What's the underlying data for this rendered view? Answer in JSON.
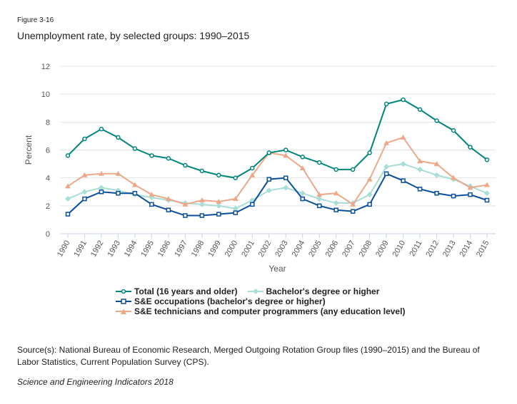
{
  "figure_label": "Figure 3-16",
  "source": "Source(s): National Bureau of Economic Research, Merged Outgoing Rotation Group files (1990–2015) and the Bureau of Labor Statistics, Current Population Survey (CPS).",
  "publication": "Science and Engineering Indicators 2018",
  "chart_data": {
    "type": "line",
    "title": "Unemployment rate, by selected groups: 1990–2015",
    "xlabel": "Year",
    "ylabel": "Percent",
    "ylim": [
      0,
      12
    ],
    "yticks": [
      "0",
      "2",
      "4",
      "6",
      "8",
      "10",
      "12"
    ],
    "grid": true,
    "legend_position": "bottom",
    "x": [
      "1990",
      "1991",
      "1992",
      "1993",
      "1994",
      "1995",
      "1996",
      "1997",
      "1998",
      "1999",
      "2000",
      "2001",
      "2002",
      "2003",
      "2004",
      "2005",
      "2006",
      "2007",
      "2008",
      "2009",
      "2010",
      "2011",
      "2012",
      "2013",
      "2014",
      "2015"
    ],
    "series": [
      {
        "name": "Total (16 years and older)",
        "color": "#00857a",
        "marker": "circle",
        "values": [
          5.6,
          6.8,
          7.5,
          6.9,
          6.1,
          5.6,
          5.4,
          4.9,
          4.5,
          4.2,
          4.0,
          4.7,
          5.8,
          6.0,
          5.5,
          5.1,
          4.6,
          4.6,
          5.8,
          9.3,
          9.6,
          8.9,
          8.1,
          7.4,
          6.2,
          5.3
        ]
      },
      {
        "name": "Bachelor's degree or higher",
        "color": "#a8ddd8",
        "marker": "diamond",
        "values": [
          2.5,
          3.0,
          3.3,
          3.1,
          2.8,
          2.6,
          2.4,
          2.2,
          2.1,
          2.0,
          1.8,
          2.4,
          3.1,
          3.3,
          2.9,
          2.5,
          2.2,
          2.2,
          2.8,
          4.8,
          5.0,
          4.6,
          4.2,
          3.9,
          3.4,
          2.9
        ]
      },
      {
        "name": "S&E occupations (bachelor's degree or higher)",
        "color": "#0a4f9e",
        "marker": "square",
        "values": [
          1.4,
          2.5,
          3.0,
          2.9,
          2.9,
          2.1,
          1.7,
          1.3,
          1.3,
          1.4,
          1.5,
          2.1,
          3.9,
          4.0,
          2.5,
          2.0,
          1.7,
          1.6,
          2.1,
          4.3,
          3.8,
          3.2,
          2.9,
          2.7,
          2.8,
          2.4
        ]
      },
      {
        "name": "S&E technicians and computer programmers (any education level)",
        "color": "#eda88a",
        "marker": "triangle",
        "values": [
          3.4,
          4.2,
          4.3,
          4.3,
          3.5,
          2.8,
          2.5,
          2.1,
          2.4,
          2.3,
          2.5,
          4.2,
          5.8,
          5.6,
          4.7,
          2.8,
          2.9,
          2.1,
          3.9,
          6.5,
          6.9,
          5.2,
          5.0,
          4.0,
          3.3,
          3.5
        ]
      }
    ]
  }
}
